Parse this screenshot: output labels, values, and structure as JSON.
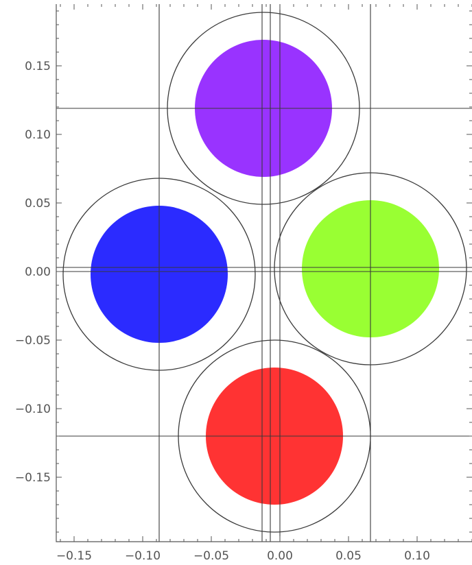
{
  "chart_data": {
    "type": "scatter",
    "title": "",
    "xlabel": "",
    "ylabel": "",
    "xlim": [
      -0.163,
      0.14
    ],
    "ylim": [
      -0.197,
      0.195
    ],
    "x_ticks": [
      -0.15,
      -0.1,
      -0.05,
      0.0,
      0.05,
      0.1
    ],
    "x_tick_labels": [
      "−0.15",
      "−0.10",
      "−0.05",
      "0.00",
      "0.05",
      "0.10"
    ],
    "y_ticks": [
      0.15,
      0.1,
      0.05,
      0.0,
      -0.05,
      -0.1,
      -0.15
    ],
    "y_tick_labels": [
      "0.15",
      "0.10",
      "0.05",
      "0.00",
      "−0.05",
      "−0.10",
      "−0.15"
    ],
    "grid": "lines through circle centers",
    "vertical_lines": [
      -0.088,
      -0.013,
      -0.007,
      0.0,
      0.066
    ],
    "horizontal_lines": [
      0.119,
      0.003,
      0.0,
      -0.12
    ],
    "circles": [
      {
        "name": "purple",
        "cx": -0.012,
        "cy": 0.119,
        "r": 0.05,
        "ring_r": 0.07,
        "color": "#9933ff"
      },
      {
        "name": "blue",
        "cx": -0.088,
        "cy": -0.002,
        "r": 0.05,
        "ring_r": 0.07,
        "color": "#2b2bff"
      },
      {
        "name": "green",
        "cx": 0.066,
        "cy": 0.002,
        "r": 0.05,
        "ring_r": 0.07,
        "color": "#99ff33"
      },
      {
        "name": "red",
        "cx": -0.004,
        "cy": -0.12,
        "r": 0.05,
        "ring_r": 0.07,
        "color": "#ff3333"
      }
    ]
  }
}
